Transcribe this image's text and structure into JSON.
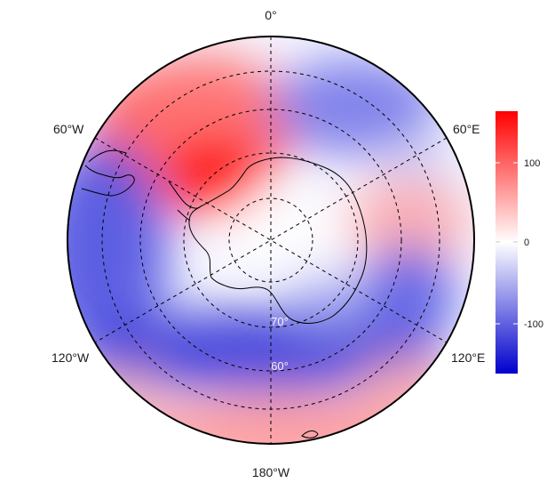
{
  "map": {
    "projection": "south-polar-orthographic",
    "lon_labels": [
      {
        "id": "lon-0",
        "text": "0°"
      },
      {
        "id": "lon-60e",
        "text": "60°E"
      },
      {
        "id": "lon-120e",
        "text": "120°E"
      },
      {
        "id": "lon-180",
        "text": "180°W"
      },
      {
        "id": "lon-120w",
        "text": "120°W"
      },
      {
        "id": "lon-60w",
        "text": "60°W"
      }
    ],
    "lat_labels": [
      {
        "id": "lat-70",
        "text": "70°"
      },
      {
        "id": "lat-60",
        "text": "60°"
      }
    ],
    "colors": {
      "positive": "#ff0000",
      "neutral": "#ffffff",
      "negative": "#0000cc",
      "coastline": "#000000",
      "graticule": "#000000"
    }
  },
  "colorbar": {
    "range": [
      -160,
      160
    ],
    "ticks": [
      "100",
      "0",
      "-100"
    ]
  }
}
